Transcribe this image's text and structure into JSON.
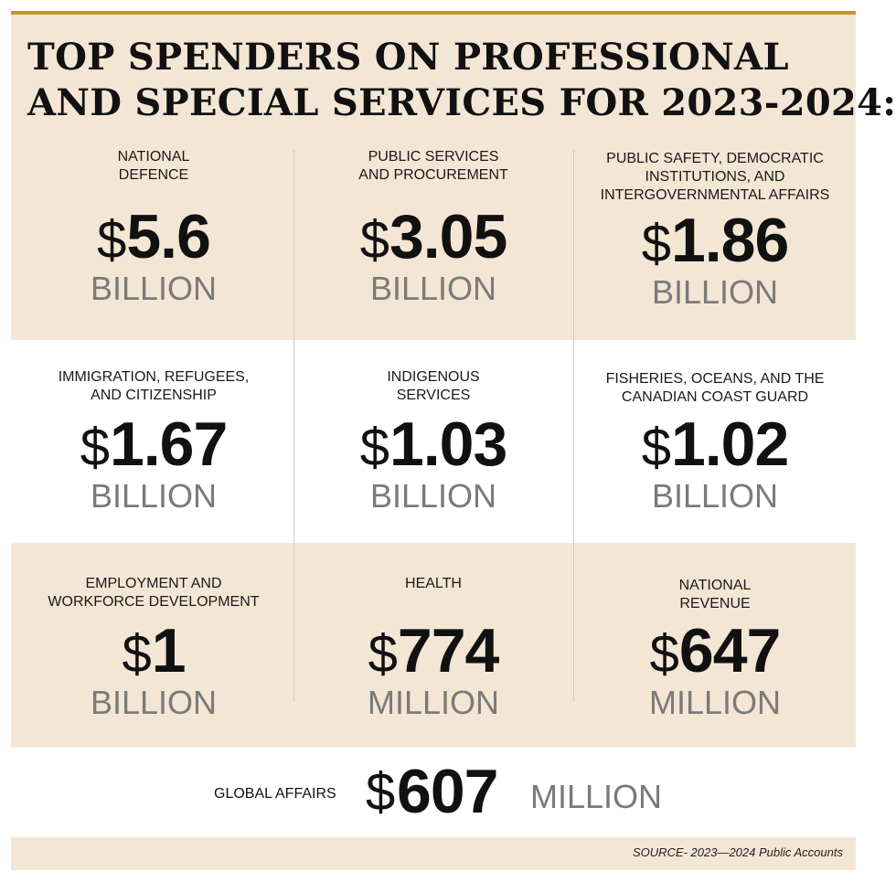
{
  "title_line1": "TOP SPENDERS ON PROFESSIONAL",
  "title_line2": "AND SPECIAL SERVICES FOR 2023-2024:",
  "cells": [
    {
      "label": "NATIONAL\nDEFENCE",
      "dollar": "$",
      "amount": "5.6",
      "unit": "BILLION"
    },
    {
      "label": "PUBLIC SERVICES\nAND PROCUREMENT",
      "dollar": "$",
      "amount": "3.05",
      "unit": "BILLION"
    },
    {
      "label": "PUBLIC SAFETY, DEMOCRATIC\nINSTITUTIONS, AND\nINTERGOVERNMENTAL AFFAIRS",
      "dollar": "$",
      "amount": "1.86",
      "unit": "BILLION"
    },
    {
      "label": "IMMIGRATION, REFUGEES,\nAND CITIZENSHIP",
      "dollar": "$",
      "amount": "1.67",
      "unit": "BILLION"
    },
    {
      "label": "INDIGENOUS\nSERVICES",
      "dollar": "$",
      "amount": "1.03",
      "unit": "BILLION"
    },
    {
      "label": "FISHERIES, OCEANS, AND THE\nCANADIAN COAST GUARD",
      "dollar": "$",
      "amount": "1.02",
      "unit": "BILLION"
    },
    {
      "label": "EMPLOYMENT AND\nWORKFORCE DEVELOPMENT",
      "dollar": "$",
      "amount": "1",
      "unit": "BILLION"
    },
    {
      "label": "HEALTH",
      "dollar": "$",
      "amount": "774",
      "unit": "MILLION"
    },
    {
      "label": "NATIONAL\nREVENUE",
      "dollar": "$",
      "amount": "647",
      "unit": "MILLION"
    }
  ],
  "bottom": {
    "label": "GLOBAL AFFAIRS",
    "dollar": "$",
    "amount": "607",
    "unit": "MILLION"
  },
  "source": "SOURCE- 2023—2024 Public Accounts",
  "colors": {
    "accent_bar": "#c9962e",
    "beige_band": "#f4e6d4",
    "unit_gray": "#7a7a7a"
  }
}
